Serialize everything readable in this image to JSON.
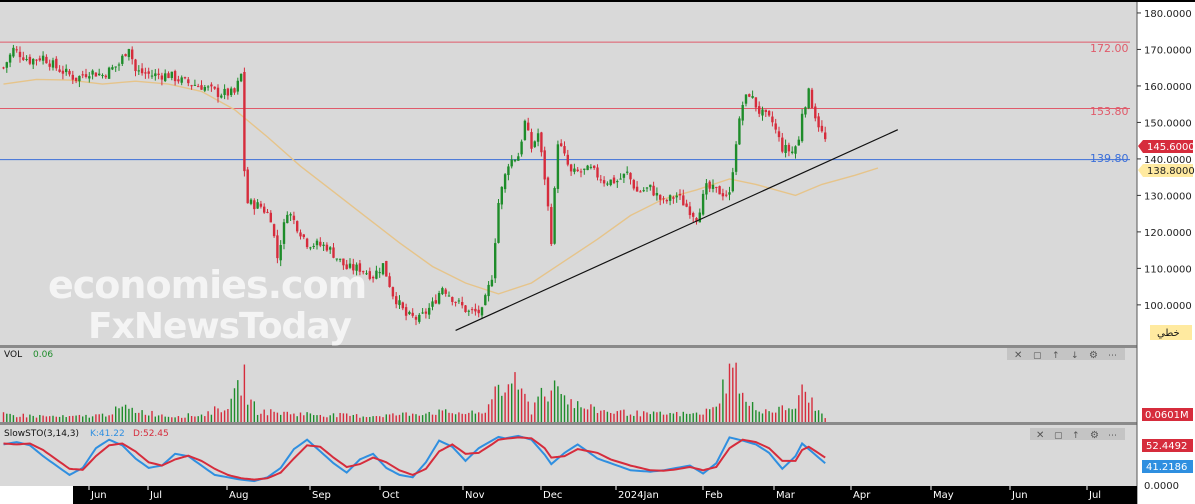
{
  "symbol_badge": "خطي",
  "watermark": {
    "line1": "economies.com",
    "line2": "FxNewsToday"
  },
  "colors": {
    "up": "#1e8c2a",
    "down": "#d62c3c",
    "ma": "#e6c48a",
    "trendline": "#111111",
    "resistance": "#e05a6a",
    "support": "#3b6fd9",
    "price_badge": "#d62c3c",
    "support_badge": "#ffeaa0",
    "vol_badge": "#d62c3c",
    "k_line": "#2f8fe0",
    "d_line": "#d62c3c"
  },
  "chart_data": [
    {
      "type": "candlestick",
      "pane": "price",
      "y_ticks": [
        "180.0000",
        "170.0000",
        "160.0000",
        "150.0000",
        "140.0000",
        "130.0000",
        "120.0000",
        "110.0000",
        "100.0000"
      ],
      "ylim": [
        89,
        183
      ],
      "x_labels": [
        "Jun",
        "Jul",
        "Aug",
        "Sep",
        "Oct",
        "Nov",
        "Dec",
        "2024Jan",
        "Feb",
        "Mar",
        "Apr",
        "May",
        "Jun",
        "Jul"
      ],
      "horizontal_levels": [
        {
          "value": 172.0,
          "label": "172.00",
          "role": "resistance"
        },
        {
          "value": 153.8,
          "label": "153.80",
          "role": "resistance"
        },
        {
          "value": 139.8,
          "label": "139.80",
          "role": "support"
        }
      ],
      "current_price": "145.6000",
      "support_badge": "138.8000",
      "trendline": {
        "start_index": 137,
        "start_value": 93.0,
        "end_index": 271,
        "end_value": 148.0
      },
      "moving_average_line": [
        [
          0,
          160.5
        ],
        [
          10,
          161.8
        ],
        [
          20,
          161.6
        ],
        [
          30,
          160.5
        ],
        [
          40,
          161.3
        ],
        [
          50,
          160.5
        ],
        [
          60,
          158.5
        ],
        [
          70,
          153.5
        ],
        [
          80,
          146.0
        ],
        [
          90,
          138.0
        ],
        [
          100,
          131.0
        ],
        [
          110,
          124.0
        ],
        [
          120,
          117.0
        ],
        [
          130,
          110.5
        ],
        [
          140,
          106.0
        ],
        [
          150,
          103.0
        ],
        [
          160,
          106.0
        ],
        [
          170,
          112.0
        ],
        [
          180,
          118.0
        ],
        [
          190,
          124.5
        ],
        [
          200,
          129.0
        ],
        [
          210,
          131.5
        ],
        [
          220,
          134.5
        ],
        [
          228,
          133.0
        ],
        [
          240,
          130.0
        ],
        [
          248,
          133.0
        ],
        [
          258,
          135.5
        ],
        [
          265,
          137.5
        ]
      ],
      "ohlc_waypoints": [
        [
          0,
          165
        ],
        [
          3,
          170
        ],
        [
          8,
          167
        ],
        [
          12,
          168
        ],
        [
          16,
          165
        ],
        [
          22,
          162
        ],
        [
          26,
          164
        ],
        [
          30,
          163
        ],
        [
          35,
          166
        ],
        [
          38,
          171
        ],
        [
          40,
          164
        ],
        [
          45,
          163
        ],
        [
          50,
          163
        ],
        [
          55,
          161
        ],
        [
          60,
          160
        ],
        [
          65,
          158
        ],
        [
          70,
          158
        ],
        [
          72,
          163
        ],
        [
          73,
          137
        ],
        [
          74,
          128
        ],
        [
          78,
          127
        ],
        [
          81,
          124
        ],
        [
          83,
          113
        ],
        [
          86,
          126
        ],
        [
          92,
          117
        ],
        [
          98,
          116
        ],
        [
          104,
          110
        ],
        [
          108,
          110
        ],
        [
          112,
          108
        ],
        [
          115,
          111
        ],
        [
          118,
          103
        ],
        [
          122,
          97
        ],
        [
          126,
          96
        ],
        [
          130,
          100
        ],
        [
          133,
          105
        ],
        [
          137,
          101
        ],
        [
          141,
          98
        ],
        [
          145,
          98
        ],
        [
          148,
          108
        ],
        [
          150,
          128
        ],
        [
          153,
          139
        ],
        [
          156,
          141
        ],
        [
          158,
          150
        ],
        [
          160,
          143
        ],
        [
          162,
          147
        ],
        [
          164,
          135
        ],
        [
          166,
          118
        ],
        [
          167,
          131
        ],
        [
          168,
          145
        ],
        [
          172,
          136
        ],
        [
          178,
          137
        ],
        [
          182,
          134
        ],
        [
          186,
          134
        ],
        [
          189,
          136
        ],
        [
          192,
          131
        ],
        [
          196,
          132
        ],
        [
          200,
          128
        ],
        [
          204,
          130
        ],
        [
          208,
          126
        ],
        [
          210,
          124
        ],
        [
          213,
          132
        ],
        [
          217,
          131
        ],
        [
          220,
          130
        ],
        [
          222,
          145
        ],
        [
          224,
          155
        ],
        [
          226,
          158
        ],
        [
          229,
          153
        ],
        [
          233,
          150
        ],
        [
          236,
          143
        ],
        [
          239,
          142
        ],
        [
          241,
          145
        ],
        [
          242,
          153
        ],
        [
          244,
          158
        ],
        [
          246,
          152
        ],
        [
          248,
          147
        ],
        [
          249,
          145
        ]
      ]
    },
    {
      "type": "bar",
      "pane": "volume",
      "title": "VOL",
      "title_value": "0.06",
      "value_badge": "0.0601M",
      "bar_heights": [
        [
          0,
          0.15
        ],
        [
          10,
          0.12
        ],
        [
          20,
          0.1
        ],
        [
          30,
          0.14
        ],
        [
          36,
          0.28
        ],
        [
          50,
          0.12
        ],
        [
          60,
          0.14
        ],
        [
          69,
          0.36
        ],
        [
          73,
          0.95
        ],
        [
          74,
          0.5
        ],
        [
          77,
          0.22
        ],
        [
          85,
          0.18
        ],
        [
          100,
          0.14
        ],
        [
          110,
          0.12
        ],
        [
          120,
          0.15
        ],
        [
          130,
          0.2
        ],
        [
          140,
          0.18
        ],
        [
          145,
          0.16
        ],
        [
          148,
          0.45
        ],
        [
          150,
          1.0
        ],
        [
          152,
          0.45
        ],
        [
          155,
          0.8
        ],
        [
          158,
          0.55
        ],
        [
          160,
          0.2
        ],
        [
          162,
          0.7
        ],
        [
          164,
          0.5
        ],
        [
          166,
          0.6
        ],
        [
          168,
          1.05
        ],
        [
          170,
          0.5
        ],
        [
          175,
          0.3
        ],
        [
          182,
          0.22
        ],
        [
          195,
          0.16
        ],
        [
          210,
          0.16
        ],
        [
          215,
          0.25
        ],
        [
          220,
          1.0
        ],
        [
          222,
          1.0
        ],
        [
          225,
          0.35
        ],
        [
          232,
          0.22
        ],
        [
          240,
          0.3
        ],
        [
          242,
          0.6
        ],
        [
          244,
          0.55
        ],
        [
          246,
          0.25
        ],
        [
          249,
          0.12
        ]
      ]
    },
    {
      "type": "line",
      "pane": "stochastic",
      "title": "SlowSTO(3,14,3)",
      "k_label": "K:41.22",
      "d_label": "D:52.45",
      "d_badge": "52.4492",
      "k_badge": "41.2186",
      "ylim": [
        0,
        100
      ],
      "k_waypoints": [
        [
          0,
          80
        ],
        [
          4,
          85
        ],
        [
          8,
          78
        ],
        [
          12,
          55
        ],
        [
          16,
          35
        ],
        [
          20,
          15
        ],
        [
          24,
          30
        ],
        [
          28,
          72
        ],
        [
          32,
          90
        ],
        [
          36,
          78
        ],
        [
          40,
          50
        ],
        [
          44,
          30
        ],
        [
          48,
          35
        ],
        [
          52,
          60
        ],
        [
          56,
          55
        ],
        [
          60,
          35
        ],
        [
          64,
          15
        ],
        [
          68,
          10
        ],
        [
          72,
          5
        ],
        [
          76,
          2
        ],
        [
          80,
          10
        ],
        [
          84,
          30
        ],
        [
          88,
          70
        ],
        [
          92,
          90
        ],
        [
          96,
          65
        ],
        [
          100,
          40
        ],
        [
          104,
          20
        ],
        [
          108,
          48
        ],
        [
          112,
          60
        ],
        [
          116,
          30
        ],
        [
          120,
          15
        ],
        [
          124,
          10
        ],
        [
          128,
          42
        ],
        [
          132,
          88
        ],
        [
          136,
          75
        ],
        [
          140,
          45
        ],
        [
          144,
          72
        ],
        [
          148,
          88
        ],
        [
          150,
          96
        ],
        [
          152,
          93
        ],
        [
          156,
          98
        ],
        [
          160,
          90
        ],
        [
          164,
          58
        ],
        [
          166,
          38
        ],
        [
          170,
          62
        ],
        [
          174,
          80
        ],
        [
          180,
          50
        ],
        [
          184,
          40
        ],
        [
          190,
          25
        ],
        [
          196,
          22
        ],
        [
          200,
          25
        ],
        [
          204,
          30
        ],
        [
          208,
          35
        ],
        [
          212,
          18
        ],
        [
          216,
          40
        ],
        [
          220,
          95
        ],
        [
          224,
          88
        ],
        [
          228,
          80
        ],
        [
          232,
          62
        ],
        [
          236,
          28
        ],
        [
          240,
          55
        ],
        [
          242,
          82
        ],
        [
          244,
          70
        ],
        [
          246,
          58
        ],
        [
          249,
          40
        ]
      ],
      "d_waypoints": [
        [
          0,
          82
        ],
        [
          4,
          80
        ],
        [
          8,
          82
        ],
        [
          12,
          68
        ],
        [
          16,
          48
        ],
        [
          20,
          28
        ],
        [
          24,
          26
        ],
        [
          28,
          55
        ],
        [
          32,
          78
        ],
        [
          36,
          82
        ],
        [
          40,
          65
        ],
        [
          44,
          42
        ],
        [
          48,
          35
        ],
        [
          52,
          48
        ],
        [
          56,
          56
        ],
        [
          60,
          45
        ],
        [
          64,
          28
        ],
        [
          68,
          15
        ],
        [
          72,
          8
        ],
        [
          76,
          5
        ],
        [
          80,
          8
        ],
        [
          84,
          20
        ],
        [
          88,
          50
        ],
        [
          92,
          78
        ],
        [
          96,
          75
        ],
        [
          100,
          52
        ],
        [
          104,
          32
        ],
        [
          108,
          38
        ],
        [
          112,
          52
        ],
        [
          116,
          42
        ],
        [
          120,
          25
        ],
        [
          124,
          15
        ],
        [
          128,
          28
        ],
        [
          132,
          65
        ],
        [
          136,
          80
        ],
        [
          140,
          60
        ],
        [
          144,
          62
        ],
        [
          148,
          80
        ],
        [
          150,
          90
        ],
        [
          152,
          92
        ],
        [
          156,
          95
        ],
        [
          160,
          93
        ],
        [
          164,
          72
        ],
        [
          166,
          52
        ],
        [
          170,
          55
        ],
        [
          174,
          70
        ],
        [
          180,
          62
        ],
        [
          184,
          48
        ],
        [
          190,
          35
        ],
        [
          196,
          25
        ],
        [
          200,
          24
        ],
        [
          204,
          27
        ],
        [
          208,
          32
        ],
        [
          212,
          25
        ],
        [
          216,
          32
        ],
        [
          220,
          72
        ],
        [
          224,
          90
        ],
        [
          228,
          85
        ],
        [
          232,
          72
        ],
        [
          236,
          45
        ],
        [
          240,
          45
        ],
        [
          242,
          68
        ],
        [
          244,
          75
        ],
        [
          246,
          66
        ],
        [
          249,
          52
        ]
      ]
    }
  ]
}
